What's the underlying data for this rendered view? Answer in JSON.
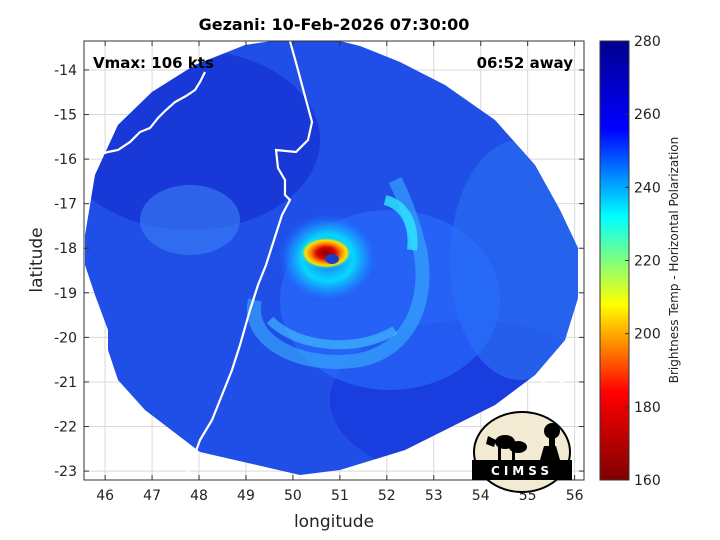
{
  "chart_data": {
    "type": "heatmap",
    "title": "Gezani: 10-Feb-2026 07:30:00",
    "xlabel": "longitude",
    "ylabel": "latitude",
    "xlim": [
      45.55,
      56.2
    ],
    "ylim": [
      -23.2,
      -13.35
    ],
    "xticks": [
      46,
      47,
      48,
      49,
      50,
      51,
      52,
      53,
      54,
      55,
      56
    ],
    "yticks": [
      -14,
      -15,
      -16,
      -17,
      -18,
      -19,
      -20,
      -21,
      -22,
      -23
    ],
    "grid": true,
    "colorbar": {
      "label": "Brightness Temp - Horizontal Polarization",
      "min": 160,
      "max": 280,
      "ticks": [
        160,
        180,
        200,
        220,
        240,
        260,
        280
      ],
      "colors": [
        "#7f0000",
        "#ff0000",
        "#ffff00",
        "#00ffff",
        "#0000ff",
        "#00008f"
      ]
    },
    "annotations": {
      "vmax": "Vmax: 106 kts",
      "away": "06:52 away"
    },
    "storm_center": {
      "lon": 50.7,
      "lat": -18.1
    },
    "eye_min_temp": 168,
    "background_temp": 262,
    "logo_text": "CIMSS"
  }
}
